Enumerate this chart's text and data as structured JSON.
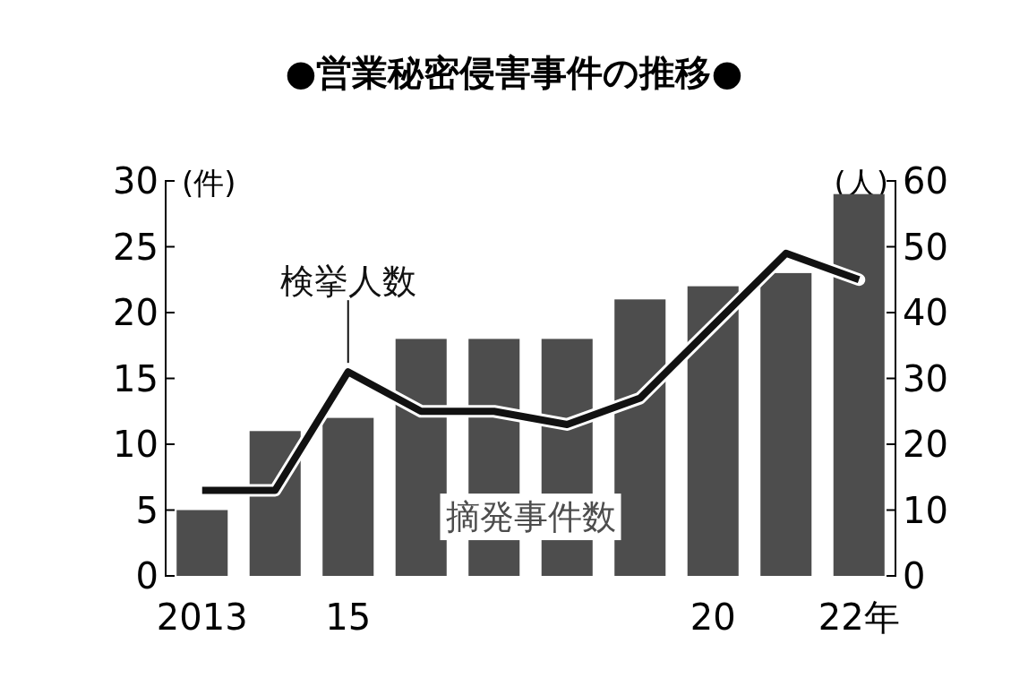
{
  "chart_data": {
    "type": "bar",
    "title": "●営業秘密侵害事件の推移●",
    "ylabel": "(件)",
    "y2label": "(人)",
    "categories": [
      "2013",
      null,
      "15",
      null,
      null,
      null,
      null,
      "20",
      null,
      "22年"
    ],
    "series": [
      {
        "name": "摘発事件数",
        "color": "#4d4d4d",
        "values": [
          5,
          11,
          12,
          18,
          18,
          18,
          21,
          22,
          23,
          29
        ]
      },
      {
        "name": "検挙人数",
        "type": "line",
        "axis": "y2",
        "color": "#111111",
        "values": [
          13,
          13,
          31,
          25,
          25,
          23,
          27,
          38,
          49,
          45
        ]
      }
    ],
    "ylim": [
      0,
      30
    ],
    "yticks": [
      0,
      5,
      10,
      15,
      20,
      25,
      30
    ],
    "y2lim": [
      0,
      60
    ],
    "y2ticks": [
      0,
      10,
      20,
      30,
      40,
      50,
      60
    ]
  }
}
